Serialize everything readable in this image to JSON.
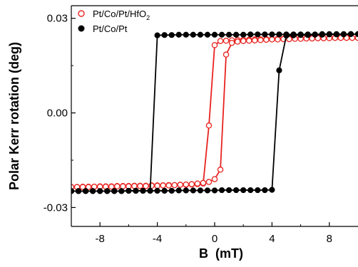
{
  "chart_data": {
    "type": "scatter",
    "title": "",
    "xlabel": "B  (mT)",
    "ylabel": "Polar Kerr rotation (deg)",
    "xlim": [
      -10,
      10
    ],
    "ylim": [
      -0.036,
      0.034
    ],
    "x_ticks": [
      -8,
      -4,
      0,
      4,
      8
    ],
    "x_tick_labels": [
      "-8",
      "-4",
      "0",
      "4",
      "8"
    ],
    "y_ticks": [
      -0.03,
      0.0,
      0.03
    ],
    "y_tick_labels": [
      "-0.03",
      "0.00",
      "0.03"
    ],
    "legend_position": "top-left",
    "grid": false,
    "series": [
      {
        "name": "Pt/Co/Pt/HfO2",
        "name_main": "Pt/Co/Pt/HfO",
        "name_sub": "2",
        "color": "#e8231f",
        "marker": "open-circle",
        "branches": [
          {
            "x": [
              -10.0,
              -9.6,
              -9.2,
              -8.8,
              -8.4,
              -8.0,
              -7.6,
              -7.2,
              -6.8,
              -6.4,
              -6.0,
              -5.6,
              -5.2,
              -4.8,
              -4.4,
              -4.0,
              -3.6,
              -3.2,
              -2.8,
              -2.4,
              -2.0,
              -1.6,
              -1.2,
              -0.8,
              -0.4,
              0.0,
              0.4,
              0.8,
              1.2,
              1.6,
              2.0,
              2.4,
              2.8,
              3.2,
              3.6,
              4.0,
              4.4,
              4.8,
              5.2,
              5.6,
              6.0,
              6.4,
              6.8,
              7.2,
              7.6,
              8.0,
              8.4,
              8.8,
              9.2,
              9.6,
              10.0
            ],
            "y": [
              -0.0235,
              -0.0235,
              -0.0234,
              -0.0234,
              -0.0234,
              -0.0233,
              -0.0233,
              -0.0233,
              -0.0232,
              -0.0232,
              -0.0232,
              -0.0231,
              -0.0231,
              -0.0231,
              -0.023,
              -0.023,
              -0.023,
              -0.0229,
              -0.0229,
              -0.0228,
              -0.0228,
              -0.0227,
              -0.0226,
              -0.0224,
              -0.004,
              0.0215,
              0.0228,
              0.0229,
              0.023,
              0.0231,
              0.0232,
              0.0232,
              0.0233,
              0.0233,
              0.0234,
              0.0234,
              0.0235,
              0.0235,
              0.0236,
              0.0236,
              0.0236,
              0.0237,
              0.0237,
              0.0237,
              0.0237,
              0.0238,
              0.0238,
              0.0238,
              0.0238,
              0.0238,
              0.0238
            ]
          },
          {
            "x": [
              10.0,
              9.6,
              9.2,
              8.8,
              8.4,
              8.0,
              7.6,
              7.2,
              6.8,
              6.4,
              6.0,
              5.6,
              5.2,
              4.8,
              4.4,
              4.0,
              3.6,
              3.2,
              2.8,
              2.4,
              2.0,
              1.6,
              1.2,
              0.8,
              0.4,
              0.0,
              -0.4,
              -0.8,
              -1.2,
              -1.6,
              -2.0,
              -2.4,
              -2.8,
              -3.2,
              -3.6,
              -4.0,
              -4.4,
              -4.8,
              -5.2,
              -5.6,
              -6.0,
              -6.4,
              -6.8,
              -7.2,
              -7.6,
              -8.0,
              -8.4,
              -8.8,
              -9.2,
              -9.6,
              -10.0
            ],
            "y": [
              0.0238,
              0.0238,
              0.0238,
              0.0238,
              0.0238,
              0.0237,
              0.0237,
              0.0237,
              0.0236,
              0.0236,
              0.0235,
              0.0235,
              0.0234,
              0.0234,
              0.0233,
              0.0233,
              0.0232,
              0.0231,
              0.023,
              0.0229,
              0.0228,
              0.0226,
              0.0222,
              0.0185,
              -0.018,
              -0.021,
              -0.0219,
              -0.0222,
              -0.0224,
              -0.0226,
              -0.0227,
              -0.0228,
              -0.0229,
              -0.023,
              -0.023,
              -0.0231,
              -0.0231,
              -0.0232,
              -0.0232,
              -0.0232,
              -0.0233,
              -0.0233,
              -0.0233,
              -0.0234,
              -0.0234,
              -0.0234,
              -0.0234,
              -0.0235,
              -0.0235,
              -0.0235,
              -0.0235
            ]
          }
        ]
      },
      {
        "name": "Pt/Co/Pt",
        "color": "#000000",
        "marker": "filled-circle",
        "branches": [
          {
            "x": [
              -10.0,
              -9.5,
              -9.0,
              -8.5,
              -8.0,
              -7.5,
              -7.0,
              -6.5,
              -6.0,
              -5.5,
              -5.0,
              -4.5,
              -4.0,
              -3.5,
              -3.0,
              -2.5,
              -2.0,
              -1.5,
              -1.0,
              -0.5,
              0.0,
              0.5,
              1.0,
              1.5,
              2.0,
              2.5,
              3.0,
              3.5,
              4.0,
              4.5,
              5.0,
              5.5,
              6.0,
              6.5,
              7.0,
              7.5,
              8.0,
              8.5,
              9.0,
              9.5,
              10.0
            ],
            "y": [
              -0.0248,
              -0.0248,
              -0.0248,
              -0.0248,
              -0.0248,
              -0.0248,
              -0.0248,
              -0.0248,
              -0.0247,
              -0.0247,
              -0.0247,
              -0.0247,
              -0.0247,
              -0.0247,
              -0.0247,
              -0.0246,
              -0.0246,
              -0.0246,
              -0.0246,
              -0.0246,
              -0.0246,
              -0.0245,
              -0.0245,
              -0.0245,
              -0.0245,
              -0.0245,
              -0.0245,
              -0.0245,
              -0.0244,
              0.0135,
              0.0245,
              0.0246,
              0.0247,
              0.0247,
              0.0248,
              0.0248,
              0.0249,
              0.0249,
              0.0249,
              0.025,
              0.025
            ]
          },
          {
            "x": [
              10.0,
              9.5,
              9.0,
              8.5,
              8.0,
              7.5,
              7.0,
              6.5,
              6.0,
              5.5,
              5.0,
              4.5,
              4.0,
              3.5,
              3.0,
              2.5,
              2.0,
              1.5,
              1.0,
              0.5,
              0.0,
              -0.5,
              -1.0,
              -1.5,
              -2.0,
              -2.5,
              -3.0,
              -3.5,
              -4.0,
              -4.5,
              -5.0,
              -5.5,
              -6.0,
              -6.5,
              -7.0,
              -7.5,
              -8.0,
              -8.5,
              -9.0,
              -9.5,
              -10.0
            ],
            "y": [
              0.025,
              0.025,
              0.025,
              0.025,
              0.025,
              0.025,
              0.0249,
              0.0249,
              0.0249,
              0.0249,
              0.0249,
              0.0249,
              0.0249,
              0.0249,
              0.0249,
              0.0249,
              0.0248,
              0.0248,
              0.0248,
              0.0248,
              0.0248,
              0.0248,
              0.0248,
              0.0248,
              0.0248,
              0.0248,
              0.0247,
              0.0247,
              0.0246,
              -0.0247,
              -0.0247,
              -0.0247,
              -0.0247,
              -0.0248,
              -0.0248,
              -0.0248,
              -0.0248,
              -0.0248,
              -0.0248,
              -0.0248,
              -0.0248
            ]
          }
        ]
      }
    ]
  }
}
